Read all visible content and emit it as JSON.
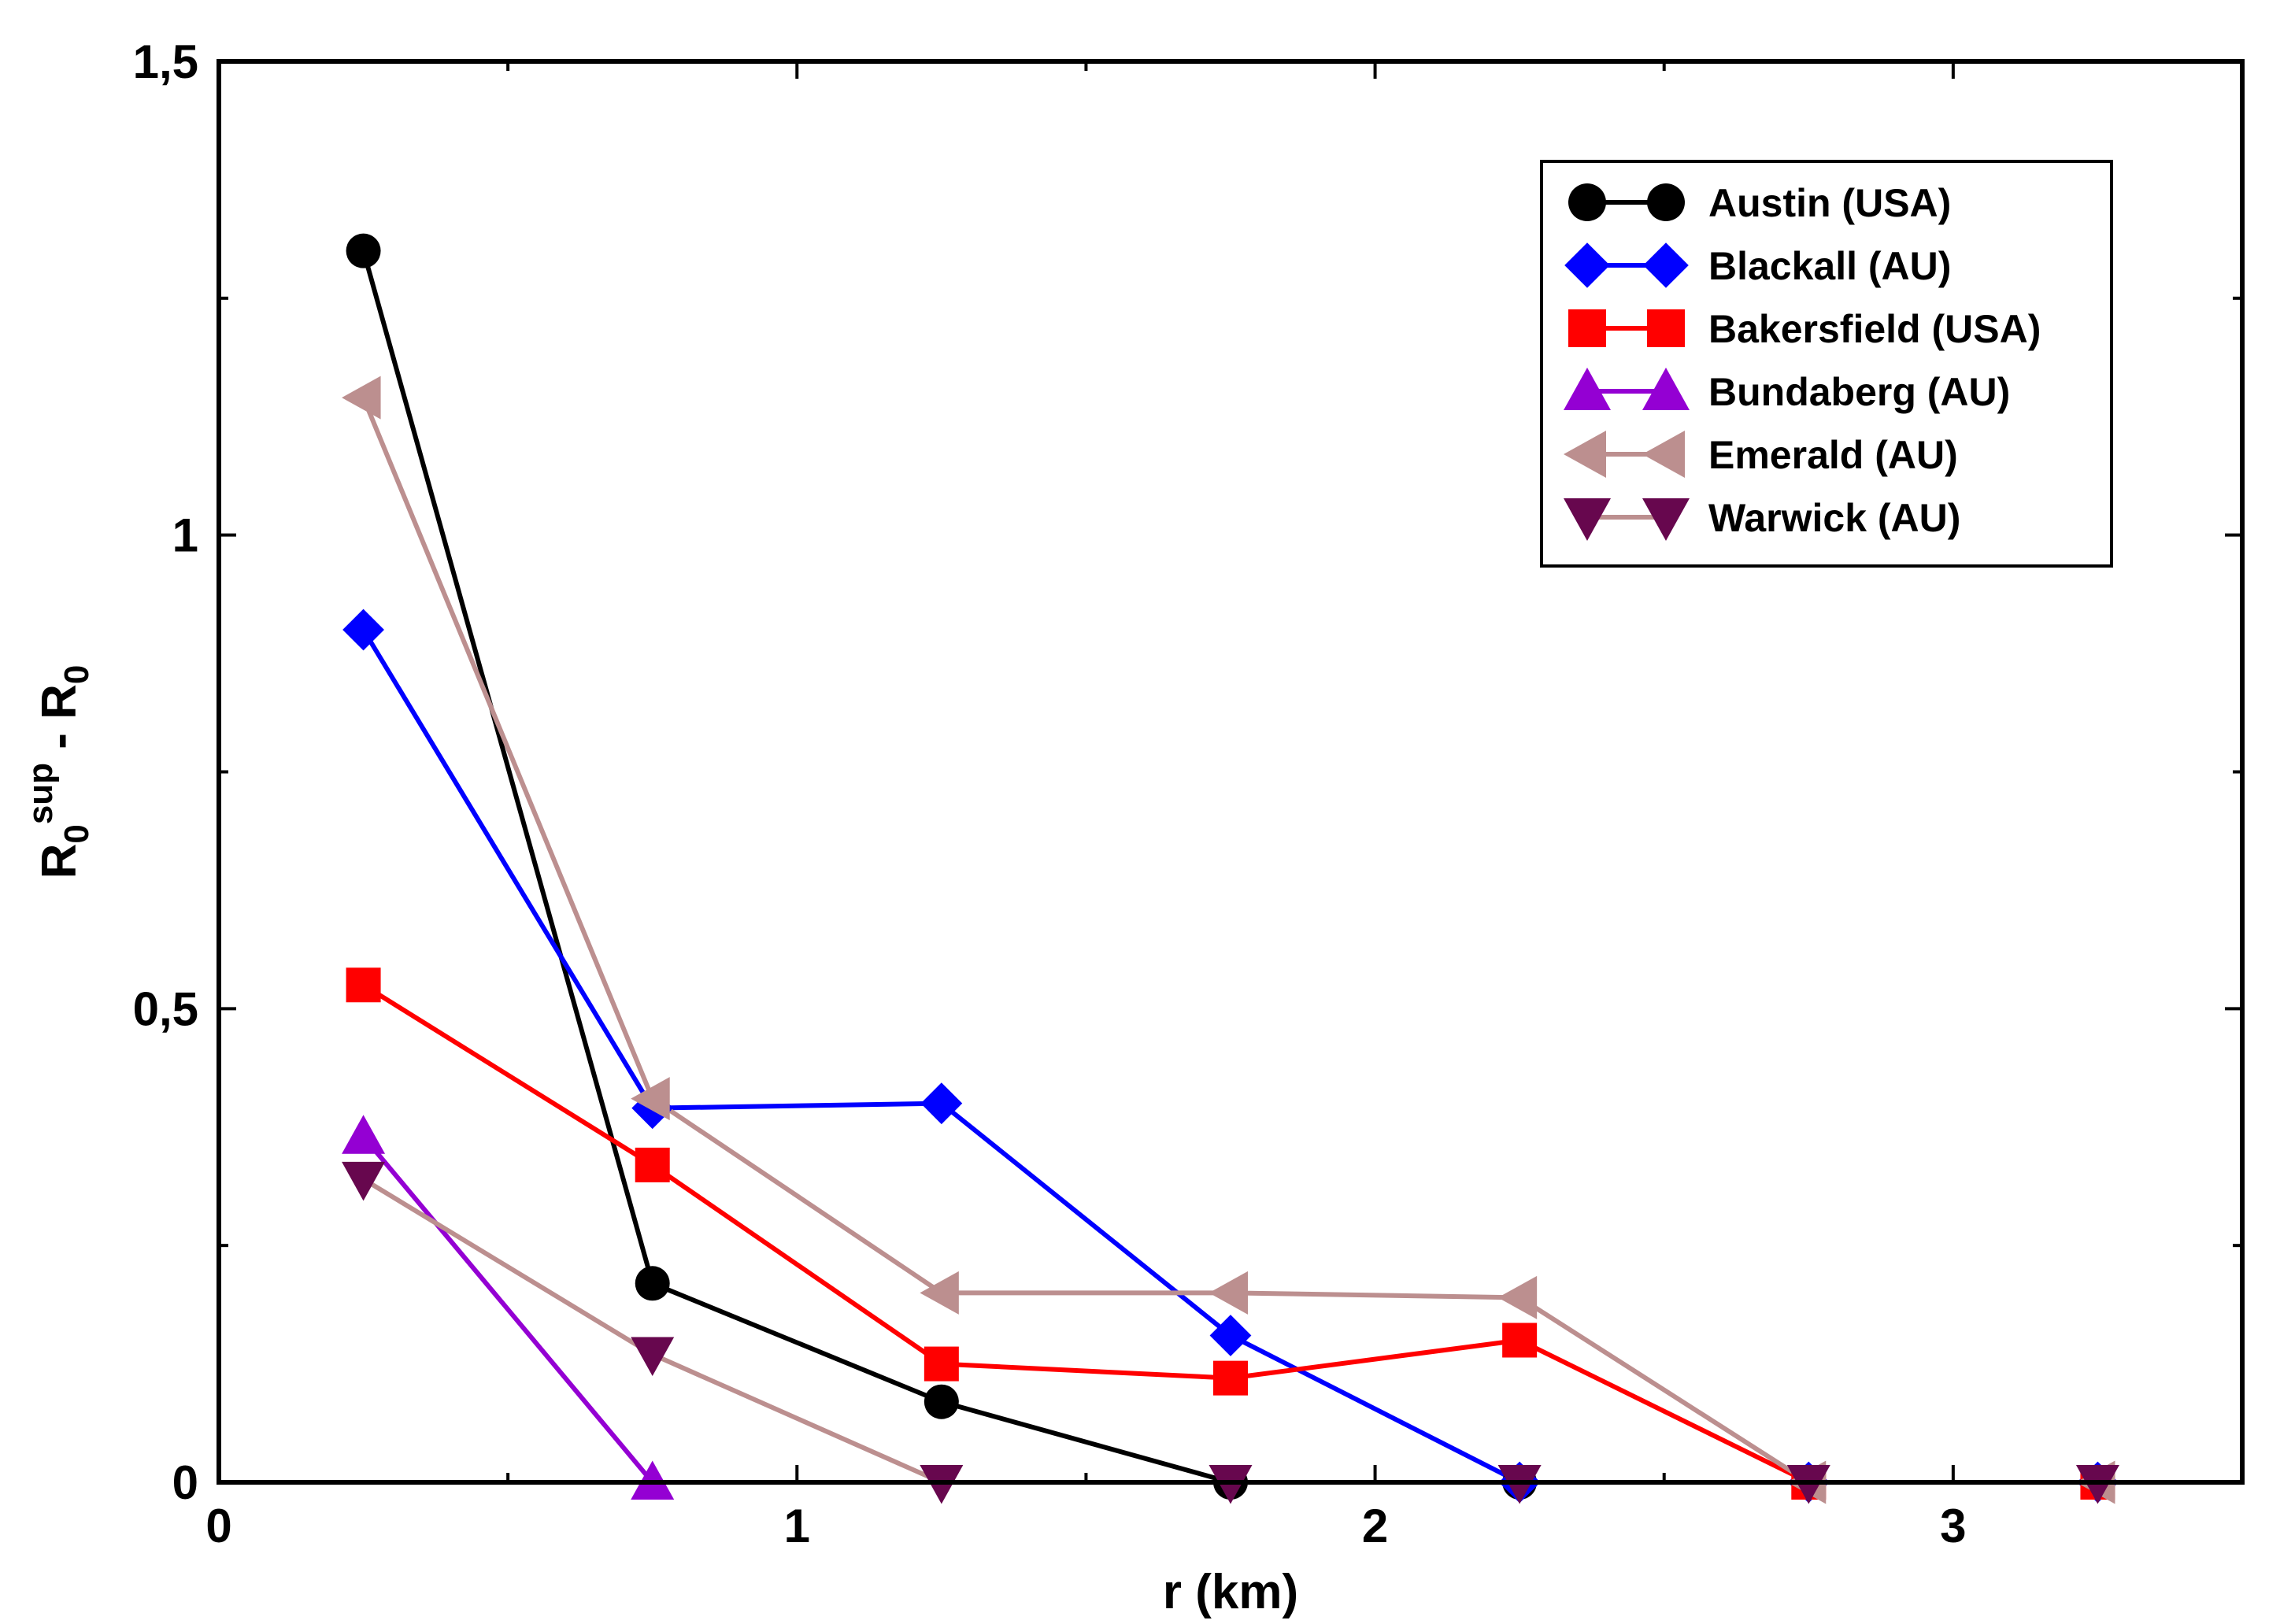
{
  "chart_data": {
    "type": "line",
    "title": "",
    "xlabel": "r (km)",
    "ylabel": {
      "main": "R",
      "sub1": "0",
      "sup": "sup",
      "mid": " - R",
      "sub2": "0"
    },
    "xlim": [
      0,
      3.5
    ],
    "ylim": [
      0,
      1.5
    ],
    "xticks": [
      0,
      1,
      2,
      3
    ],
    "xtick_labels": [
      "0",
      "1",
      "2",
      "3"
    ],
    "yticks": [
      0,
      0.5,
      1,
      1.5
    ],
    "ytick_labels": [
      "0",
      "0,5",
      "1",
      "1,5"
    ],
    "x_minor_step": 0.5,
    "y_minor_step": 0.25,
    "legend_position": "top-right",
    "series": [
      {
        "name": "Austin (USA)",
        "color": "#000000",
        "line_color": "#000000",
        "marker": "circle",
        "x": [
          0.25,
          0.75,
          1.25,
          1.75,
          2.25,
          2.75,
          3.25
        ],
        "y": [
          1.3,
          0.21,
          0.085,
          0,
          0,
          0,
          0
        ]
      },
      {
        "name": "Blackall (AU)",
        "color": "#0000ff",
        "line_color": "#0000ff",
        "marker": "diamond",
        "x": [
          0.25,
          0.75,
          1.25,
          1.75,
          2.25,
          2.75,
          3.25
        ],
        "y": [
          0.9,
          0.395,
          0.4,
          0.155,
          0,
          0,
          0
        ]
      },
      {
        "name": "Bakersfield (USA)",
        "color": "#ff0000",
        "line_color": "#ff0000",
        "marker": "square",
        "x": [
          0.25,
          0.75,
          1.25,
          1.75,
          2.25,
          2.75,
          3.25
        ],
        "y": [
          0.525,
          0.335,
          0.125,
          0.11,
          0.15,
          0,
          0
        ]
      },
      {
        "name": "Bundaberg (AU)",
        "color": "#9400d3",
        "line_color": "#9400d3",
        "marker": "triangle-up",
        "x": [
          0.25,
          0.75
        ],
        "y": [
          0.365,
          0
        ]
      },
      {
        "name": "Emerald (AU)",
        "color": "#bc8f8f",
        "line_color": "#bc8f8f",
        "marker": "triangle-left",
        "x": [
          0.25,
          0.75,
          1.25,
          1.75,
          2.25,
          2.75,
          3.25
        ],
        "y": [
          1.145,
          0.405,
          0.2,
          0.2,
          0.195,
          0,
          0
        ]
      },
      {
        "name": "Warwick (AU)",
        "color": "#67074e",
        "line_color": "#bc8f8f",
        "marker": "triangle-down",
        "x": [
          0.25,
          0.75,
          1.25,
          1.75,
          2.25,
          2.75,
          3.25
        ],
        "y": [
          0.32,
          0.135,
          0,
          0,
          0,
          0,
          0
        ]
      }
    ]
  }
}
